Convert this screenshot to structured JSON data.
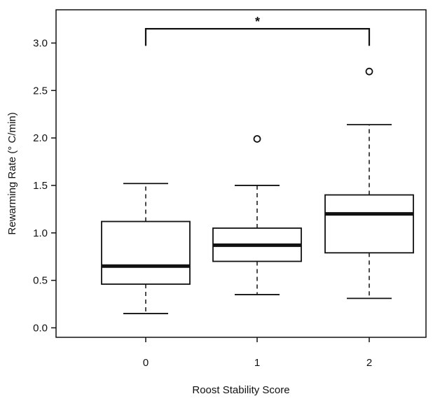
{
  "chart_data": {
    "type": "box",
    "xlabel": "Roost Stability Score",
    "ylabel": "Rewarming Rate (° C/min)",
    "categories": [
      "0",
      "1",
      "2"
    ],
    "y_ticks": [
      0.0,
      0.5,
      1.0,
      1.5,
      2.0,
      2.5,
      3.0
    ],
    "y_tick_labels": [
      "0.0",
      "0.5",
      "1.0",
      "1.5",
      "2.0",
      "2.5",
      "3.0"
    ],
    "ylim": [
      -0.1,
      3.35
    ],
    "grid": false,
    "legend": "none",
    "boxes": [
      {
        "category": "0",
        "whisker_low": 0.15,
        "q1": 0.46,
        "median": 0.65,
        "q3": 1.12,
        "whisker_high": 1.52,
        "outliers": []
      },
      {
        "category": "1",
        "whisker_low": 0.35,
        "q1": 0.7,
        "median": 0.87,
        "q3": 1.05,
        "whisker_high": 1.5,
        "outliers": [
          1.99
        ]
      },
      {
        "category": "2",
        "whisker_low": 0.31,
        "q1": 0.79,
        "median": 1.2,
        "q3": 1.4,
        "whisker_high": 2.14,
        "outliers": [
          2.7
        ]
      }
    ],
    "significance": {
      "from": "0",
      "to": "2",
      "label": "*",
      "y": 3.15
    },
    "colors": {
      "stroke": "#111111",
      "background": "#ffffff"
    }
  }
}
